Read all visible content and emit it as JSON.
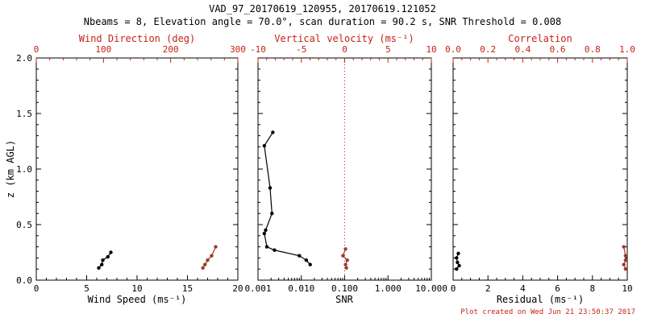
{
  "title": "VAD_97_20170619_120955, 20170619.121052",
  "subtitle": "Nbeams = 8, Elevation angle = 70.0°, scan duration = 90.2 s, SNR Threshold = 0.008",
  "footer": "Plot created on Wed Jun 21 23:50:37 2017",
  "colors": {
    "black": "#000000",
    "axis_red": "#c22314",
    "series_red": "#9e3a2b"
  },
  "chart_data": [
    {
      "type": "scatter",
      "xlabel": "Wind Speed (ms⁻¹)",
      "xscale": "linear",
      "xlim": [
        0,
        20
      ],
      "xticks": {
        "values": [
          0,
          5,
          10,
          15,
          20
        ],
        "labels": [
          "0",
          "5",
          "10",
          "15",
          "20"
        ]
      },
      "xminor": 1,
      "x2label": "Wind Direction (deg)",
      "x2lim": [
        0,
        300
      ],
      "x2ticks": {
        "values": [
          0,
          100,
          200,
          300
        ],
        "labels": [
          "0",
          "100",
          "200",
          "300"
        ]
      },
      "x2minor": 20,
      "ylabel": "z (km AGL)",
      "ylim": [
        0,
        2
      ],
      "yticks": {
        "values": [
          0,
          0.5,
          1,
          1.5,
          2
        ],
        "labels": [
          "0.0",
          "0.5",
          "1.0",
          "1.5",
          "2.0"
        ]
      },
      "yminor": 0.1,
      "series": [
        {
          "name": "wind-speed",
          "axis": "bottom",
          "color": "black",
          "points": [
            [
              6.2,
              0.11
            ],
            [
              6.5,
              0.14
            ],
            [
              6.6,
              0.18
            ],
            [
              7.1,
              0.21
            ],
            [
              7.4,
              0.25
            ]
          ]
        },
        {
          "name": "wind-direction",
          "axis": "top",
          "color": "red",
          "points": [
            [
              248,
              0.11
            ],
            [
              251,
              0.14
            ],
            [
              255,
              0.18
            ],
            [
              261,
              0.22
            ],
            [
              267,
              0.3
            ]
          ]
        }
      ]
    },
    {
      "type": "scatter",
      "xlabel": "SNR",
      "xscale": "log",
      "xlim": [
        0.001,
        10
      ],
      "xticks": {
        "values": [
          0.001,
          0.01,
          0.1,
          1,
          10
        ],
        "labels": [
          "0.001",
          "0.010",
          "0.100",
          "1.000",
          "10.000"
        ]
      },
      "x2label": "Vertical velocity (ms⁻¹)",
      "x2lim": [
        -10,
        10
      ],
      "x2ticks": {
        "values": [
          -10,
          -5,
          0,
          5,
          10
        ],
        "labels": [
          "-10",
          "-5",
          "0",
          "5",
          "10"
        ]
      },
      "x2minor": 1,
      "ylim": [
        0,
        2
      ],
      "yticks": {
        "values": [
          0,
          0.5,
          1,
          1.5,
          2
        ]
      },
      "yminor": 0.1,
      "refline_x2": 0,
      "series": [
        {
          "name": "snr",
          "axis": "bottom",
          "color": "black",
          "points": [
            [
              0.0022,
              1.33
            ],
            [
              0.0014,
              1.21
            ],
            [
              0.0019,
              0.83
            ],
            [
              0.0021,
              0.6
            ],
            [
              0.0015,
              0.45
            ],
            [
              0.0014,
              0.42
            ],
            [
              0.0016,
              0.3
            ],
            [
              0.0024,
              0.27
            ],
            [
              0.009,
              0.22
            ],
            [
              0.013,
              0.18
            ],
            [
              0.016,
              0.14
            ]
          ]
        },
        {
          "name": "vertical-velocity",
          "axis": "top",
          "color": "red",
          "points": [
            [
              0.2,
              0.11
            ],
            [
              0.1,
              0.14
            ],
            [
              0.3,
              0.18
            ],
            [
              -0.2,
              0.22
            ],
            [
              0.1,
              0.28
            ]
          ]
        }
      ]
    },
    {
      "type": "scatter",
      "xlabel": "Residual (ms⁻¹)",
      "xscale": "linear",
      "xlim": [
        0,
        10
      ],
      "xticks": {
        "values": [
          0,
          2,
          4,
          6,
          8,
          10
        ],
        "labels": [
          "0",
          "2",
          "4",
          "6",
          "8",
          "10"
        ]
      },
      "xminor": 0.5,
      "x2label": "Correlation",
      "x2lim": [
        0,
        1
      ],
      "x2ticks": {
        "values": [
          0,
          0.2,
          0.4,
          0.6,
          0.8,
          1
        ],
        "labels": [
          "0.0",
          "0.2",
          "0.4",
          "0.6",
          "0.8",
          "1.0"
        ]
      },
      "x2minor": 0.05,
      "ylim": [
        0,
        2
      ],
      "yticks": {
        "values": [
          0,
          0.5,
          1,
          1.5,
          2
        ]
      },
      "yminor": 0.1,
      "series": [
        {
          "name": "residual",
          "axis": "bottom",
          "color": "black",
          "points": [
            [
              0.2,
              0.1
            ],
            [
              0.35,
              0.13
            ],
            [
              0.25,
              0.16
            ],
            [
              0.2,
              0.2
            ],
            [
              0.3,
              0.24
            ]
          ]
        },
        {
          "name": "correlation",
          "axis": "top",
          "color": "red",
          "points": [
            [
              0.99,
              0.1
            ],
            [
              0.98,
              0.14
            ],
            [
              0.99,
              0.18
            ],
            [
              0.99,
              0.22
            ],
            [
              0.98,
              0.3
            ]
          ]
        }
      ]
    }
  ]
}
